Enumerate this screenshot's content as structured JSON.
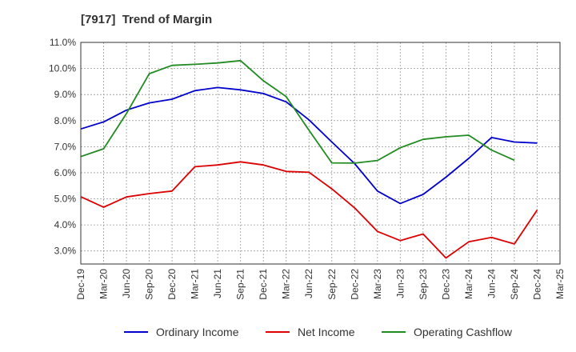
{
  "chart_data": {
    "type": "line",
    "title": "[7917]  Trend of Margin",
    "xlabel": "",
    "ylabel": "",
    "categories": [
      "Dec-19",
      "Mar-20",
      "Jun-20",
      "Sep-20",
      "Dec-20",
      "Mar-21",
      "Jun-21",
      "Sep-21",
      "Dec-21",
      "Mar-22",
      "Jun-22",
      "Sep-22",
      "Dec-22",
      "Mar-23",
      "Jun-23",
      "Sep-23",
      "Dec-23",
      "Mar-24",
      "Jun-24",
      "Sep-24",
      "Dec-24",
      "Mar-25"
    ],
    "ylim": [
      2.5,
      11.0
    ],
    "yticks": [
      3.0,
      4.0,
      5.0,
      6.0,
      7.0,
      8.0,
      9.0,
      10.0,
      11.0
    ],
    "ytick_labels": [
      "3.0%",
      "4.0%",
      "5.0%",
      "6.0%",
      "7.0%",
      "8.0%",
      "9.0%",
      "10.0%",
      "11.0%"
    ],
    "grid": true,
    "legend_position": "bottom",
    "series": [
      {
        "name": "Ordinary Income",
        "color": "#0000cc",
        "values": [
          7.68,
          7.95,
          8.4,
          8.68,
          8.82,
          9.15,
          9.27,
          9.18,
          9.04,
          8.72,
          8.03,
          7.18,
          6.35,
          5.3,
          4.82,
          5.17,
          5.83,
          6.55,
          7.35,
          7.18,
          7.14,
          null
        ]
      },
      {
        "name": "Net Income",
        "color": "#dd0000",
        "values": [
          5.08,
          4.68,
          5.07,
          5.2,
          5.3,
          6.23,
          6.3,
          6.42,
          6.3,
          6.05,
          6.02,
          5.38,
          4.65,
          3.75,
          3.4,
          3.65,
          2.73,
          3.35,
          3.52,
          3.27,
          4.57,
          null
        ]
      },
      {
        "name": "Operating Cashflow",
        "color": "#228b22",
        "values": [
          6.62,
          6.92,
          8.27,
          9.8,
          10.12,
          10.16,
          10.21,
          10.3,
          9.53,
          8.92,
          7.63,
          6.38,
          6.37,
          6.47,
          6.96,
          7.28,
          7.38,
          7.44,
          6.87,
          6.48,
          null,
          null
        ]
      }
    ]
  }
}
